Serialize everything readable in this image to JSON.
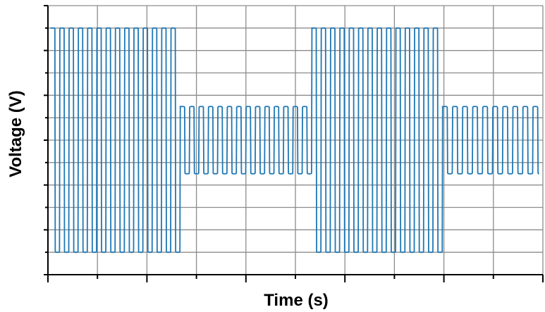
{
  "chart_data": {
    "type": "line",
    "title": "",
    "xlabel": "Time (s)",
    "ylabel": "Voltage (V)",
    "x_tick_labels": [],
    "y_tick_labels": [],
    "xlim": [
      0,
      10
    ],
    "ylim": [
      0,
      12
    ],
    "grid": true,
    "legend": "none",
    "x_gridlines": [
      1,
      2,
      3,
      4,
      5,
      6,
      7,
      8,
      9,
      10
    ],
    "y_gridlines": [
      1,
      2,
      3,
      4,
      5,
      6,
      7,
      8,
      9,
      10,
      11,
      12
    ],
    "x_minor_ticks_per_major": 2,
    "y_minor_ticks_per_major": 2,
    "series": [
      {
        "color": "#1f77b4",
        "waveform": "square-edged oscillation with rounded transitions",
        "segments": [
          {
            "x_start": 0.05,
            "x_end": 2.67,
            "y_low": 1.0,
            "y_high": 11.0,
            "cycles": 14
          },
          {
            "x_start": 2.67,
            "x_end": 5.33,
            "y_low": 4.5,
            "y_high": 7.5,
            "cycles": 14
          },
          {
            "x_start": 5.33,
            "x_end": 7.97,
            "y_low": 1.0,
            "y_high": 11.0,
            "cycles": 14
          },
          {
            "x_start": 7.97,
            "x_end": 10.0,
            "y_low": 4.5,
            "y_high": 7.5,
            "cycles": 10
          }
        ]
      }
    ]
  }
}
